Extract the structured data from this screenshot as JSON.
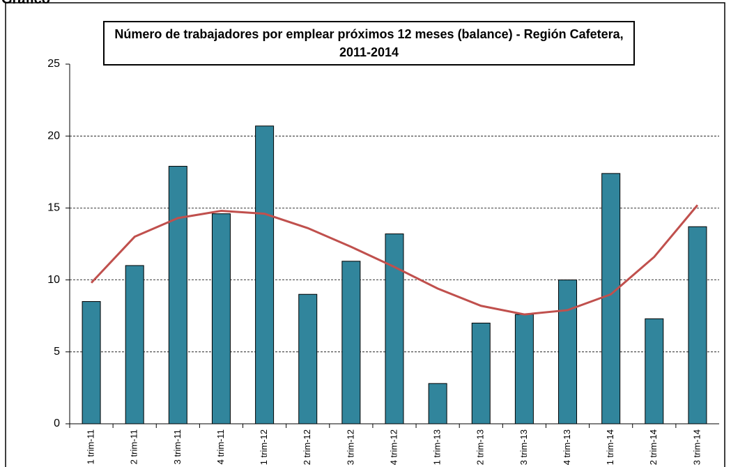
{
  "heading": "Gráfico",
  "chart_data": {
    "type": "bar",
    "title": "Número de trabajadores por emplear próximos 12 meses (balance) - Región Cafetera, 2011-2014",
    "categories": [
      "1 trim-11",
      "2 trim-11",
      "3 trim-11",
      "4 trim-11",
      "1 trim-12",
      "2 trim-12",
      "3 trim-12",
      "4 trim-12",
      "1 trim-13",
      "2 trim-13",
      "3 trim-13",
      "4 trim-13",
      "1 trim-14",
      "2 trim-14",
      "3 trim-14"
    ],
    "values": [
      8.5,
      11.0,
      17.9,
      14.6,
      20.7,
      9.0,
      11.3,
      13.2,
      2.8,
      7.0,
      7.6,
      10.0,
      17.4,
      7.3,
      13.7
    ],
    "color": "#31859c",
    "trend": {
      "type": "line",
      "color": "#c0504d",
      "values": [
        9.8,
        13.0,
        14.3,
        14.8,
        14.6,
        13.6,
        12.3,
        10.9,
        9.4,
        8.2,
        7.6,
        7.9,
        9.0,
        11.6,
        15.2
      ]
    },
    "ylim": [
      0,
      25
    ],
    "yticks": [
      0,
      5,
      10,
      15,
      20,
      25
    ],
    "grid": true
  }
}
